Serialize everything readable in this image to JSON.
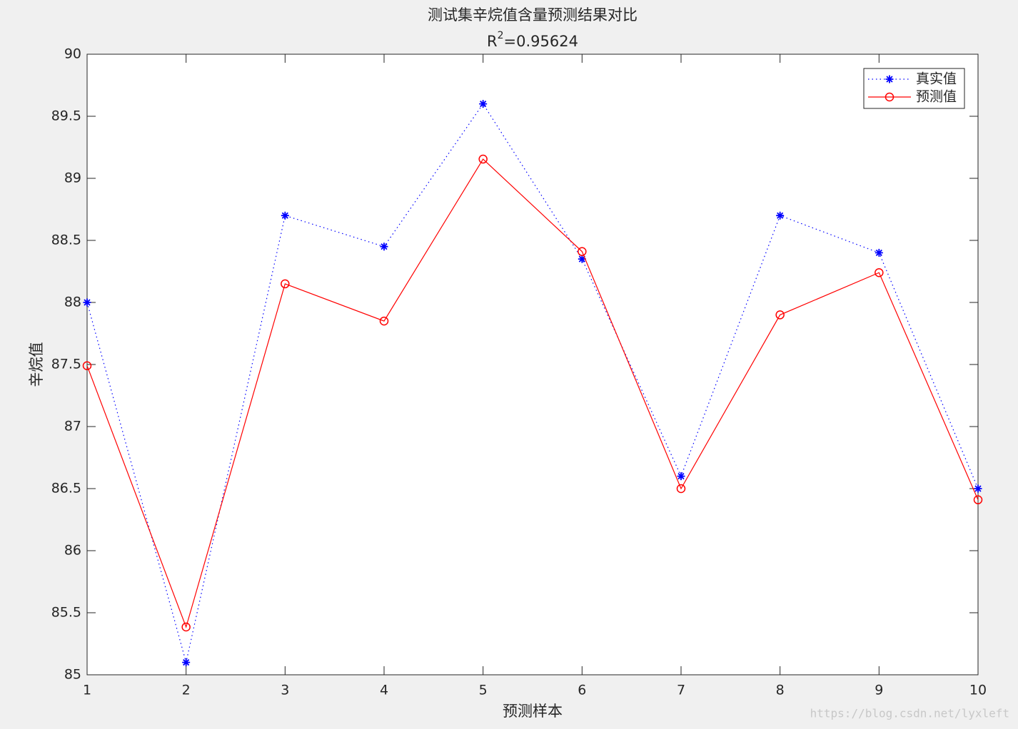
{
  "chart_data": {
    "type": "line",
    "title": "测试集辛烷值含量预测结果对比",
    "subtitle": {
      "base": "R",
      "sup": "2",
      "rest": "=0.95624"
    },
    "xlabel": "预测样本",
    "ylabel": "辛烷值",
    "x": [
      1,
      2,
      3,
      4,
      5,
      6,
      7,
      8,
      9,
      10
    ],
    "series": [
      {
        "name": "真实值",
        "color": "#0000ff",
        "line_style": "dotted",
        "marker": "asterisk",
        "values": [
          88.0,
          85.1,
          88.7,
          88.45,
          89.6,
          88.35,
          86.6,
          88.7,
          88.4,
          86.5
        ]
      },
      {
        "name": "预测值",
        "color": "#ff0000",
        "line_style": "solid",
        "marker": "circle",
        "values": [
          87.49,
          85.385,
          88.15,
          87.85,
          89.155,
          88.41,
          86.5,
          87.9,
          88.24,
          86.41
        ]
      }
    ],
    "xlim": [
      1,
      10
    ],
    "xticks": [
      1,
      2,
      3,
      4,
      5,
      6,
      7,
      8,
      9,
      10
    ],
    "ylim": [
      85,
      90
    ],
    "yticks": [
      85,
      85.5,
      86,
      86.5,
      87,
      87.5,
      88,
      88.5,
      89,
      89.5,
      90
    ],
    "grid": false,
    "legend_position": "northeast",
    "watermark": "https://blog.csdn.net/lyxleft"
  }
}
